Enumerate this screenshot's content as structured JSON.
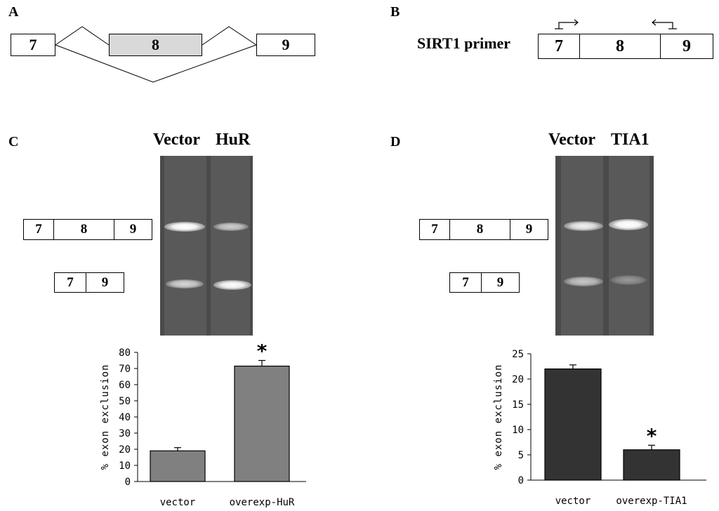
{
  "panels": {
    "A": {
      "letter": "A",
      "exons": [
        "7",
        "8",
        "9"
      ]
    },
    "B": {
      "letter": "B",
      "primer_label": "SIRT1 primer",
      "exons": [
        "7",
        "8",
        "9"
      ]
    },
    "C": {
      "letter": "C",
      "lanes": [
        "Vector",
        "HuR"
      ],
      "long_product": [
        "7",
        "8",
        "9"
      ],
      "short_product": [
        "7",
        "9"
      ]
    },
    "D": {
      "letter": "D",
      "lanes": [
        "Vector",
        "TIA1"
      ],
      "long_product": [
        "7",
        "8",
        "9"
      ],
      "short_product": [
        "7",
        "9"
      ]
    }
  },
  "chart_data": [
    {
      "type": "bar",
      "panel": "C",
      "categories": [
        "vector",
        "overexp-HuR"
      ],
      "values": [
        19,
        71.5
      ],
      "errors": [
        2,
        3.5
      ],
      "significance": [
        "",
        "*"
      ],
      "ylabel": "% exon exclusion",
      "ylim": [
        0,
        80
      ],
      "yticks": [
        0,
        10,
        20,
        30,
        40,
        50,
        60,
        70,
        80
      ],
      "bar_color": "#808080"
    },
    {
      "type": "bar",
      "panel": "D",
      "categories": [
        "vector",
        "overexp-TIA1"
      ],
      "values": [
        22,
        6
      ],
      "errors": [
        0.8,
        0.9
      ],
      "significance": [
        "",
        "*"
      ],
      "ylabel": "% exon exclusion",
      "ylim": [
        0,
        25
      ],
      "yticks": [
        0,
        5,
        10,
        15,
        20,
        25
      ],
      "bar_color": "#333333"
    }
  ]
}
